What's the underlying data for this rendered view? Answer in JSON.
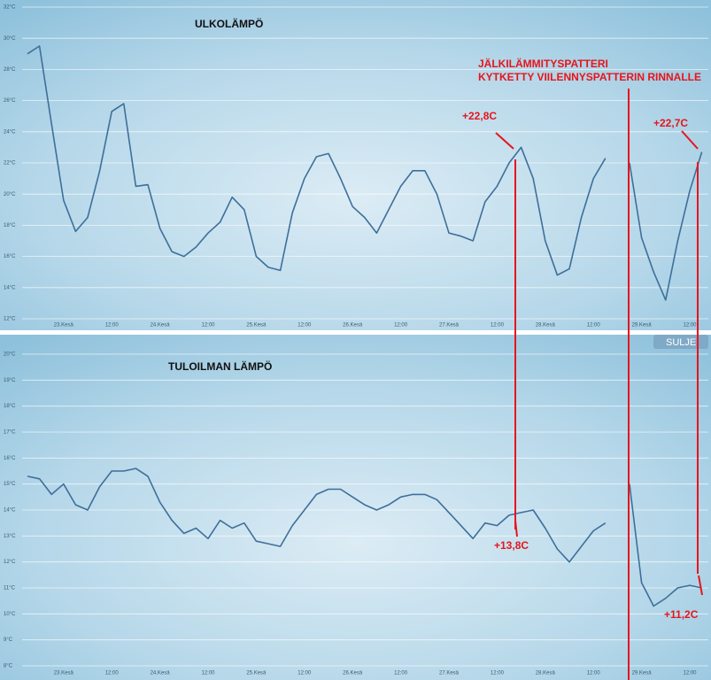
{
  "chart_data": [
    {
      "type": "line",
      "title": "ULKOLÄMPÖ",
      "categories": [
        null,
        null,
        null,
        "23.Kesä",
        null,
        null,
        null,
        "12:00",
        null,
        null,
        null,
        "24.Kesä",
        null,
        null,
        null,
        "12:00",
        null,
        null,
        null,
        "25.Kesä",
        null,
        null,
        null,
        "12:00",
        null,
        null,
        null,
        "26.Kesä",
        null,
        null,
        null,
        "12:00",
        null,
        null,
        null,
        "27.Kesä",
        null,
        null,
        null,
        "12:00",
        null,
        null,
        null,
        "28.Kesä",
        null,
        null,
        null,
        "12:00",
        null,
        null,
        null,
        "29.Kesä",
        null,
        null,
        null,
        "12:00",
        null
      ],
      "values": [
        29.0,
        29.5,
        24.5,
        19.6,
        17.6,
        18.5,
        21.5,
        25.3,
        25.8,
        20.5,
        20.6,
        17.8,
        16.3,
        16.0,
        16.6,
        17.5,
        18.2,
        19.8,
        19.0,
        16.0,
        15.3,
        15.1,
        18.8,
        21.0,
        22.4,
        22.6,
        21.0,
        19.2,
        18.5,
        17.5,
        19.0,
        20.5,
        21.5,
        21.5,
        20.0,
        17.5,
        17.3,
        17.0,
        19.5,
        20.5,
        22.0,
        23.0,
        21.0,
        17.0,
        14.8,
        15.2,
        18.5,
        21.0,
        22.3,
        null,
        22.0,
        17.2,
        15.0,
        13.2,
        17.0,
        20.2,
        22.7
      ],
      "color": "#3e6f9a",
      "grid": true,
      "ylim": [
        12,
        32
      ],
      "yticks": [
        {
          "value": 12,
          "label": "12°C"
        },
        {
          "value": 14,
          "label": "14°C"
        },
        {
          "value": 16,
          "label": "16°C"
        },
        {
          "value": 18,
          "label": "18°C"
        },
        {
          "value": 20,
          "label": "20°C"
        },
        {
          "value": 22,
          "label": "22°C"
        },
        {
          "value": 24,
          "label": "24°C"
        },
        {
          "value": 26,
          "label": "26°C"
        },
        {
          "value": 28,
          "label": "28°C"
        },
        {
          "value": 30,
          "label": "30°C"
        },
        {
          "value": 32,
          "label": "32°C"
        }
      ],
      "annotations": [
        "+22,8C",
        "+22,7C"
      ]
    },
    {
      "type": "line",
      "title": "TULOILMAN LÄMPÖ",
      "categories": [
        null,
        null,
        null,
        "23.Kesä",
        null,
        null,
        null,
        "12:00",
        null,
        null,
        null,
        "24.Kesä",
        null,
        null,
        null,
        "12:00",
        null,
        null,
        null,
        "25.Kesä",
        null,
        null,
        null,
        "12:00",
        null,
        null,
        null,
        "26.Kesä",
        null,
        null,
        null,
        "12:00",
        null,
        null,
        null,
        "27.Kesä",
        null,
        null,
        null,
        "12:00",
        null,
        null,
        null,
        "28.Kesä",
        null,
        null,
        null,
        "12:00",
        null,
        null,
        null,
        "29.Kesä",
        null,
        null,
        null,
        "12:00",
        null
      ],
      "values": [
        15.3,
        15.2,
        14.6,
        15.0,
        14.2,
        14.0,
        14.9,
        15.5,
        15.5,
        15.6,
        15.3,
        14.3,
        13.6,
        13.1,
        13.3,
        12.9,
        13.6,
        13.3,
        13.5,
        12.8,
        12.7,
        12.6,
        13.4,
        14.0,
        14.6,
        14.8,
        14.8,
        14.5,
        14.2,
        14.0,
        14.2,
        14.5,
        14.6,
        14.6,
        14.4,
        13.9,
        13.4,
        12.9,
        13.5,
        13.4,
        13.8,
        13.9,
        14.0,
        13.3,
        12.5,
        12.0,
        12.6,
        13.2,
        13.5,
        null,
        15.0,
        11.2,
        10.3,
        10.6,
        11.0,
        11.1,
        11.0
      ],
      "color": "#3e6f9a",
      "grid": true,
      "ylim": [
        8,
        20
      ],
      "yticks": [
        {
          "value": 8,
          "label": "8°C"
        },
        {
          "value": 9,
          "label": "9°C"
        },
        {
          "value": 10,
          "label": "10°C"
        },
        {
          "value": 11,
          "label": "11°C"
        },
        {
          "value": 12,
          "label": "12°C"
        },
        {
          "value": 13,
          "label": "13°C"
        },
        {
          "value": 14,
          "label": "14°C"
        },
        {
          "value": 15,
          "label": "15°C"
        },
        {
          "value": 16,
          "label": "16°C"
        },
        {
          "value": 17,
          "label": "17°C"
        },
        {
          "value": 18,
          "label": "18°C"
        },
        {
          "value": 19,
          "label": "19°C"
        },
        {
          "value": 20,
          "label": "20°C"
        }
      ],
      "annotations": [
        "+13,8C",
        "+11,2C"
      ]
    }
  ],
  "annotations": [
    "JÄLKILÄMMITYSPATTERI",
    "KYTKETTY VIILENNYSPATTERIN RINNALLE"
  ],
  "button": "SULJE"
}
